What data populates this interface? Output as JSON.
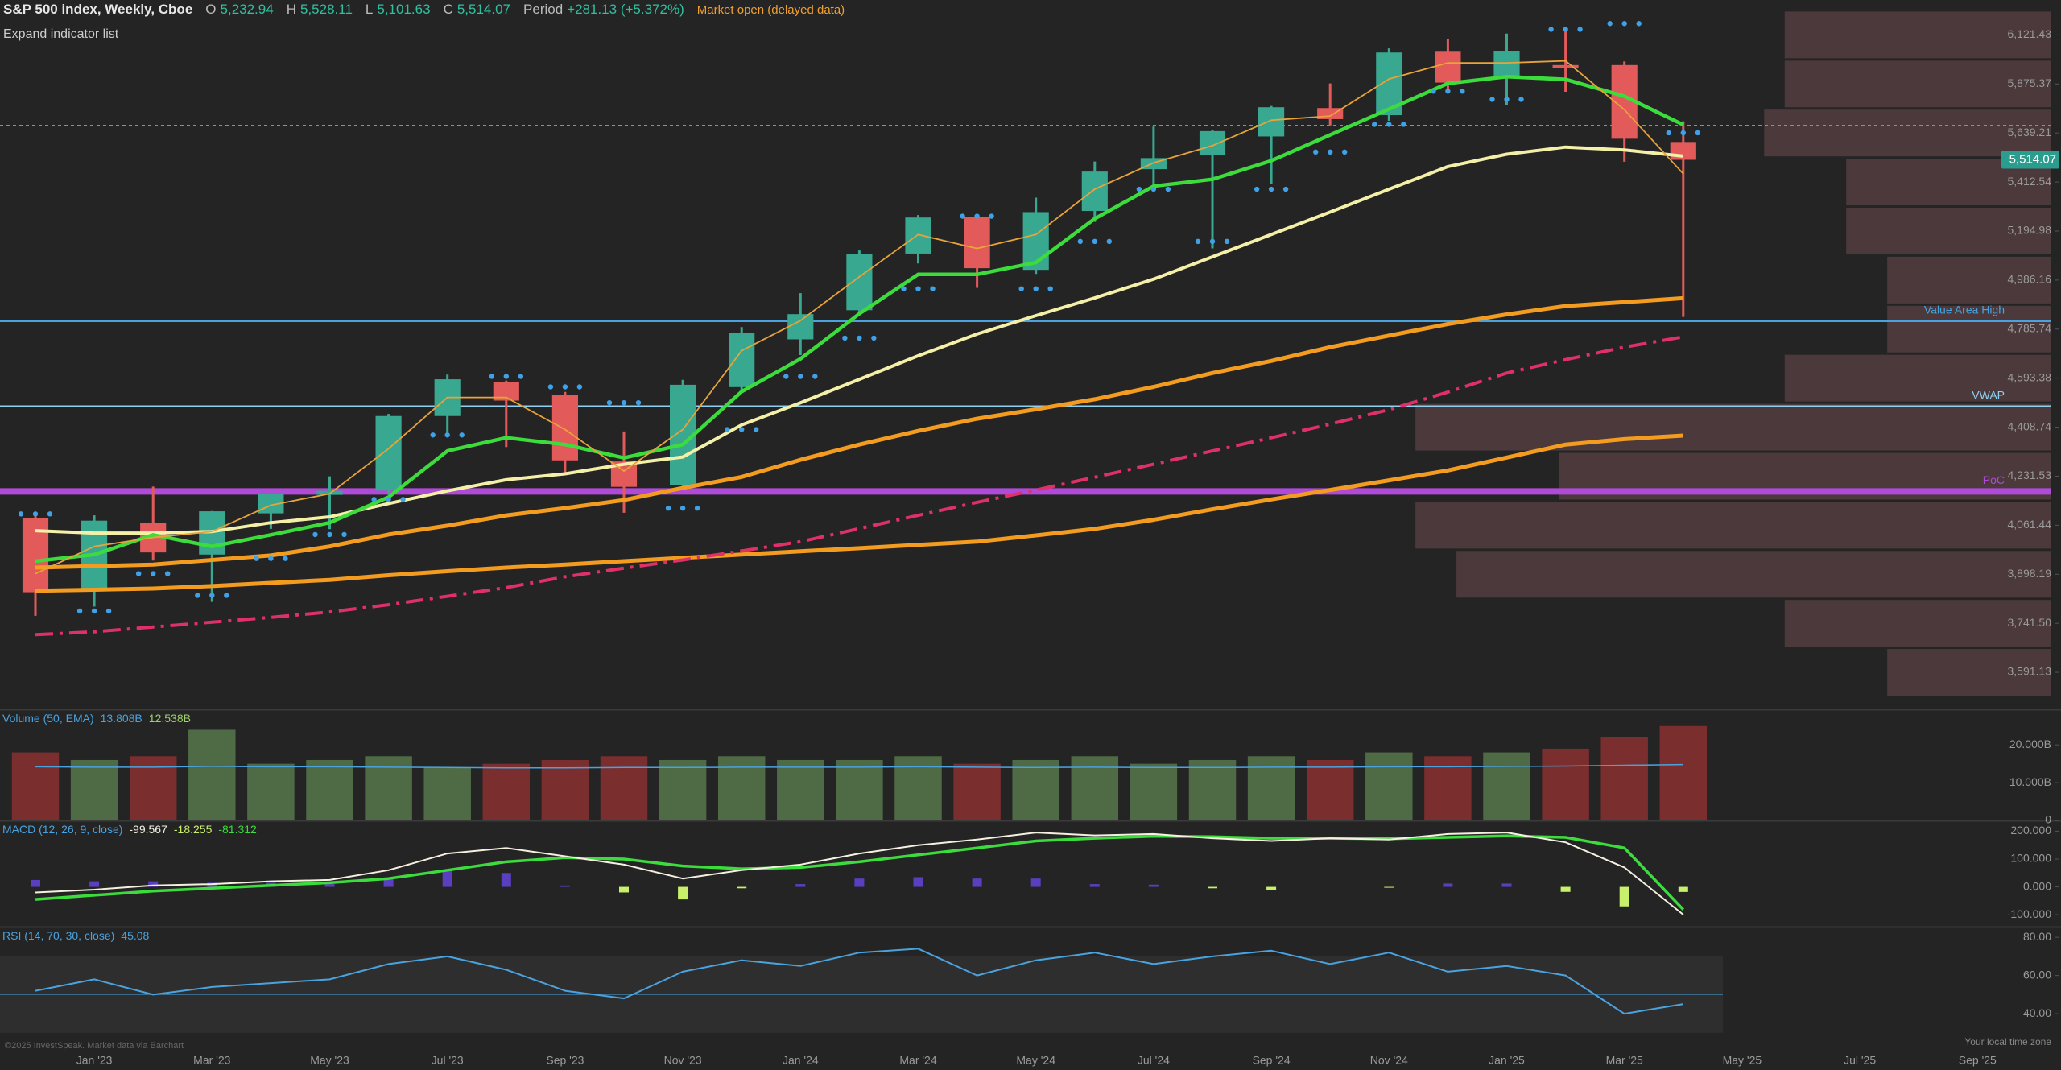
{
  "header": {
    "title": "S&P 500 index, Weekly, Cboe",
    "fields": [
      {
        "label": "O",
        "value": "5,232.94"
      },
      {
        "label": "H",
        "value": "5,528.11"
      },
      {
        "label": "L",
        "value": "5,101.63"
      },
      {
        "label": "C",
        "value": "5,514.07"
      }
    ],
    "period_label": "Period",
    "period_value": "+281.13 (+5.372%)",
    "status": "Market open (delayed data)",
    "expand": "Expand indicator list",
    "copyright": "©2025 InvestSpeak. Market data via Barchart",
    "timezone": "Your local time zone"
  },
  "chart_data": [
    {
      "type": "candlestick",
      "log_scale": true,
      "up_color": "#39a890",
      "down_color": "#e35a5a",
      "categories": [
        null,
        "Jan '23",
        null,
        "Mar '23",
        null,
        "May '23",
        null,
        "Jul '23",
        null,
        "Sep '23",
        null,
        "Nov '23",
        null,
        "Jan '24",
        null,
        "Mar '24",
        null,
        "May '24",
        null,
        "Jul '24",
        null,
        "Sep '24",
        null,
        "Nov '24",
        null,
        "Jan '25",
        null,
        "Mar '25",
        null,
        "May '25",
        null,
        "Jul '25",
        null,
        "Sep '25"
      ],
      "open": [
        4087,
        3853,
        4070,
        3963,
        4102,
        4166,
        4181,
        4450,
        4578,
        4530,
        4284,
        4201,
        4559,
        4745,
        4862,
        5098,
        5257,
        5029,
        5283,
        5471,
        5537,
        5623,
        5758,
        5724,
        6040,
        5903,
        5969,
        5969,
        5597,
        null,
        null,
        null,
        null,
        null
      ],
      "high": [
        4101,
        4095,
        4195,
        4110,
        4170,
        4231,
        4458,
        4607,
        4584,
        4541,
        4393,
        4587,
        4794,
        4932,
        5111,
        5265,
        5264,
        5342,
        5506,
        5670,
        5652,
        5768,
        5878,
        6053,
        6100,
        6128,
        6147,
        5987,
        5695,
        null,
        null,
        null,
        null,
        null
      ],
      "low": [
        3765,
        3794,
        3943,
        3809,
        4049,
        4048,
        4166,
        4385,
        4336,
        4238,
        4104,
        4197,
        4547,
        4683,
        4853,
        5056,
        4954,
        5012,
        5235,
        5391,
        5120,
        5403,
        5675,
        5697,
        5832,
        5773,
        5837,
        5505,
        4835,
        null,
        null,
        null,
        null,
        null
      ],
      "close": [
        3840,
        4077,
        3970,
        4109,
        4169,
        4180,
        4450,
        4589,
        4508,
        4288,
        4194,
        4568,
        4770,
        4846,
        5096,
        5254,
        5036,
        5278,
        5460,
        5522,
        5648,
        5762,
        5705,
        6032,
        5882,
        6041,
        5955,
        5612,
        5514.07,
        null,
        null,
        null,
        null,
        null
      ],
      "lines": [
        {
          "color": "#f39c1f",
          "width": 5,
          "dash": false,
          "values": [
            3845,
            3848,
            3852,
            3860,
            3870,
            3880,
            3895,
            3908,
            3920,
            3930,
            3941,
            3952,
            3963,
            3974,
            3984,
            3995,
            4006,
            4027,
            4049,
            4080,
            4116,
            4150,
            4183,
            4217,
            4252,
            4298,
            4345,
            4365,
            4378,
            null,
            null,
            null,
            null,
            null
          ]
        },
        {
          "color": "#e0306a",
          "width": 4,
          "dash": true,
          "values": [
            3706,
            3715,
            3730,
            3745,
            3760,
            3777,
            3800,
            3827,
            3855,
            3890,
            3918,
            3945,
            3975,
            4006,
            4050,
            4095,
            4140,
            4183,
            4228,
            4274,
            4322,
            4370,
            4420,
            4474,
            4540,
            4613,
            4665,
            4714,
            4755,
            null,
            null,
            null,
            null,
            null
          ]
        },
        {
          "color": "#f39c1f",
          "width": 5,
          "dash": false,
          "values": [
            3920,
            3925,
            3930,
            3945,
            3960,
            3990,
            4030,
            4060,
            4095,
            4120,
            4148,
            4190,
            4229,
            4290,
            4345,
            4395,
            4440,
            4475,
            4513,
            4560,
            4613,
            4660,
            4714,
            4760,
            4806,
            4845,
            4879,
            4895,
            4911,
            null,
            null,
            null,
            null,
            null
          ]
        },
        {
          "color": "#f4f0a8",
          "width": 4,
          "dash": false,
          "values": [
            4043,
            4035,
            4035,
            4040,
            4070,
            4090,
            4136,
            4180,
            4219,
            4240,
            4274,
            4300,
            4417,
            4500,
            4589,
            4680,
            4766,
            4840,
            4912,
            4990,
            5084,
            5180,
            5278,
            5380,
            5483,
            5540,
            5573,
            5560,
            5531,
            null,
            null,
            null,
            null,
            null
          ]
        },
        {
          "color": "#3ddc3d",
          "width": 4.5,
          "dash": false,
          "values": [
            3941,
            3963,
            4029,
            3990,
            4029,
            4070,
            4158,
            4322,
            4370,
            4345,
            4297,
            4345,
            4542,
            4668,
            4848,
            5010,
            5010,
            5060,
            5249,
            5394,
            5425,
            5510,
            5630,
            5753,
            5878,
            5911,
            5898,
            5815,
            5678,
            null,
            null,
            null,
            null,
            null
          ]
        },
        {
          "color": "#e8a33a",
          "width": 1.8,
          "dash": false,
          "values": [
            3900,
            3990,
            4020,
            4040,
            4130,
            4170,
            4330,
            4520,
            4520,
            4400,
            4250,
            4400,
            4700,
            4820,
            5000,
            5180,
            5120,
            5180,
            5380,
            5500,
            5580,
            5700,
            5720,
            5900,
            5980,
            5980,
            5990,
            5750,
            5450,
            null,
            null,
            null,
            null,
            null
          ]
        }
      ],
      "dots": {
        "color": "#3fa2e8",
        "values": [
          4100,
          3780,
          3900,
          3830,
          3950,
          4030,
          4150,
          4380,
          4600,
          4560,
          4500,
          4120,
          4400,
          4600,
          4750,
          4950,
          5260,
          4950,
          5150,
          5380,
          5150,
          5380,
          5550,
          5680,
          5840,
          5800,
          6150,
          6180,
          5640,
          null,
          null,
          null,
          null,
          null
        ]
      },
      "levels": [
        {
          "value": 5675,
          "color": "#4aa3df",
          "dash": true
        },
        {
          "value": 4818,
          "label": "Value Area High",
          "color": "#4aa3df",
          "dash": false
        },
        {
          "value": 4486,
          "label": "VWAP",
          "color": "#8fd0f0",
          "dash": false
        },
        {
          "value": 4178,
          "label": "PoC",
          "color": "#b04ad8",
          "dash": false
        }
      ],
      "volume_profile": {
        "color": "#6b4a4e",
        "xlim": [
          0,
          100
        ],
        "levels": [
          6121.43,
          5875.37,
          5639.21,
          5412.54,
          5194.98,
          4986.16,
          4785.74,
          4593.38,
          4408.74,
          4231.53,
          4061.44,
          3898.19,
          3741.5,
          3591.13
        ],
        "values": [
          13,
          13,
          14,
          10,
          10,
          8,
          8,
          13,
          31,
          24,
          31,
          29,
          13,
          8
        ]
      },
      "last_price_label": "5,514.07",
      "last_price_color": "#2a9d8f",
      "ylim": [
        3484,
        6303
      ],
      "yticks": [
        {
          "value": 6121.43,
          "label": "6,121.43"
        },
        {
          "value": 5875.37,
          "label": "5,875.37"
        },
        {
          "value": 5639.21,
          "label": "5,639.21"
        },
        {
          "value": 5412.54,
          "label": "5,412.54"
        },
        {
          "value": 5194.98,
          "label": "5,194.98"
        },
        {
          "value": 4986.16,
          "label": "4,986.16"
        },
        {
          "value": 4785.74,
          "label": "4,785.74"
        },
        {
          "value": 4593.38,
          "label": "4,593.38"
        },
        {
          "value": 4408.74,
          "label": "4,408.74"
        },
        {
          "value": 4231.53,
          "label": "4,231.53"
        },
        {
          "value": 4061.44,
          "label": "4,061.44"
        },
        {
          "value": 3898.19,
          "label": "3,898.19"
        },
        {
          "value": 3741.5,
          "label": "3,741.50"
        },
        {
          "value": 3591.13,
          "label": "3,591.13"
        }
      ]
    },
    {
      "type": "bar",
      "title": "Volume (50, EMA)",
      "legend_values": [
        "13.808B",
        "12.538B"
      ],
      "legend_colors": [
        "#4aa3df",
        "#9bd36a"
      ],
      "up_color": "#4f6b45",
      "down_color": "#7a2e2e",
      "values": [
        18,
        16,
        17,
        24,
        15,
        16,
        17,
        14,
        15,
        16,
        17,
        16,
        17,
        16,
        16,
        17,
        15,
        16,
        17,
        15,
        16,
        17,
        16,
        18,
        17,
        18,
        19,
        22,
        25,
        null,
        null,
        null,
        null,
        null
      ],
      "lines": [
        {
          "color": "#4aa3df",
          "width": 1.5,
          "dash": false,
          "values": [
            14.2,
            14.1,
            14.1,
            14.3,
            14.2,
            14.2,
            14.1,
            14,
            13.9,
            13.9,
            14,
            14,
            14.1,
            14.1,
            14.1,
            14.2,
            14.1,
            14,
            14.1,
            14,
            14,
            14.1,
            14.1,
            14.2,
            14.2,
            14.3,
            14.4,
            14.6,
            14.8,
            null,
            null,
            null,
            null,
            null
          ]
        }
      ],
      "ylim": [
        0,
        29
      ],
      "yticks": [
        0,
        {
          "value": 10,
          "label": "10.000B"
        },
        {
          "value": 20,
          "label": "20.000B"
        }
      ]
    },
    {
      "type": "line",
      "title": "MACD (12, 26, 9, close)",
      "legend_values": [
        "-99.567",
        "-18.255",
        "-81.312"
      ],
      "legend_colors": [
        "#f5f0e0",
        "#c8f06a",
        "#3ddc3d"
      ],
      "histogram": {
        "up_color": "#5a3fc0",
        "down_color": "#c8f06a",
        "values": [
          25,
          20,
          20,
          15,
          15,
          10,
          30,
          60,
          50,
          5,
          -20,
          -45,
          -5,
          10,
          30,
          35,
          30,
          30,
          10,
          8,
          -5,
          -10,
          0,
          -3,
          12,
          12,
          -18,
          -70,
          -18.255,
          null,
          null,
          null,
          null,
          null
        ]
      },
      "lines": [
        {
          "color": "#3ddc3d",
          "width": 3.5,
          "dash": false,
          "values": [
            -45,
            -30,
            -15,
            -5,
            5,
            15,
            30,
            60,
            90,
            105,
            100,
            75,
            65,
            70,
            90,
            115,
            140,
            165,
            175,
            182,
            180,
            175,
            175,
            173,
            178,
            183,
            178,
            140,
            -81.312,
            null,
            null,
            null,
            null,
            null
          ]
        },
        {
          "color": "#f5f0e0",
          "width": 2,
          "dash": false,
          "values": [
            -20,
            -10,
            5,
            10,
            20,
            25,
            60,
            120,
            140,
            110,
            80,
            30,
            60,
            80,
            120,
            150,
            170,
            195,
            185,
            190,
            175,
            165,
            175,
            170,
            190,
            195,
            160,
            70,
            -99.567,
            null,
            null,
            null,
            null,
            null
          ]
        }
      ],
      "ylim": [
        -143,
        233
      ],
      "yticks": [
        {
          "value": 200,
          "label": "200.000"
        },
        {
          "value": 100,
          "label": "100.000"
        },
        {
          "value": 0,
          "label": "0.000"
        },
        {
          "value": -100,
          "label": "-100.000"
        }
      ]
    },
    {
      "type": "line",
      "title": "RSI (14, 70, 30, close)",
      "legend_values": [
        "45.08"
      ],
      "legend_colors": [
        "#4aa3df"
      ],
      "bands": [
        30,
        70
      ],
      "midline": 50,
      "lines": [
        {
          "color": "#4aa3df",
          "width": 2,
          "dash": false,
          "values": [
            52,
            58,
            50,
            54,
            56,
            58,
            66,
            70,
            63,
            52,
            48,
            62,
            68,
            65,
            72,
            74,
            60,
            68,
            72,
            66,
            70,
            73,
            66,
            72,
            62,
            65,
            60,
            40,
            45.08,
            null,
            null,
            null,
            null,
            null
          ]
        }
      ],
      "ylim": [
        27,
        84.7
      ],
      "yticks": [
        {
          "value": 80,
          "label": "80.00"
        },
        {
          "value": 60,
          "label": "60.00"
        },
        {
          "value": 40,
          "label": "40.00"
        }
      ]
    }
  ]
}
